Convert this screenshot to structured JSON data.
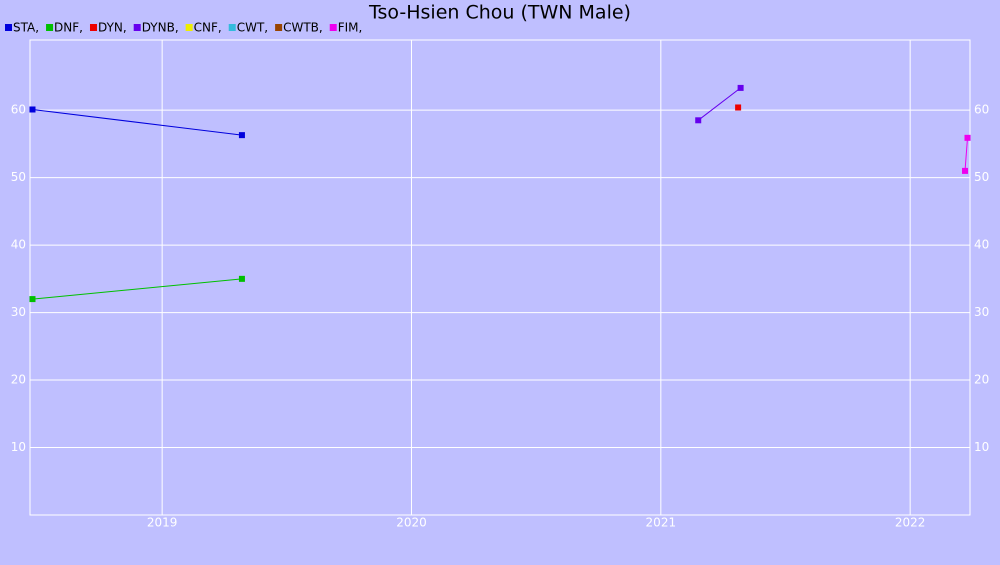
{
  "chart_data": {
    "type": "line",
    "title": "Tso-Hsien Chou (TWN Male)",
    "series": [
      {
        "name": "STA,",
        "color": "#0000dd",
        "x": [
          2018.48,
          2019.32
        ],
        "values": [
          60.1,
          56.3
        ]
      },
      {
        "name": "DNF,",
        "color": "#00c000",
        "x": [
          2018.48,
          2019.32
        ],
        "values": [
          32.0,
          35.0
        ]
      },
      {
        "name": "DYN,",
        "color": "#ee0000",
        "x": [
          2021.31
        ],
        "values": [
          60.4
        ]
      },
      {
        "name": "DYNB,",
        "color": "#6600ee",
        "x": [
          2021.15,
          2021.32
        ],
        "values": [
          58.5,
          63.3
        ]
      },
      {
        "name": "CNF,",
        "color": "#eeee00",
        "x": [],
        "values": []
      },
      {
        "name": "CWT,",
        "color": "#33bbdd",
        "x": [],
        "values": []
      },
      {
        "name": "CWTB,",
        "color": "#994400",
        "x": [],
        "values": []
      },
      {
        "name": "FIM,",
        "color": "#ee00ee",
        "x": [
          2022.23,
          2022.22
        ],
        "values": [
          55.9,
          51.0
        ]
      }
    ],
    "xlim": [
      2018.47,
      2022.24
    ],
    "xticks": [
      2019,
      2020,
      2021,
      2022
    ],
    "ylim": [
      0,
      70.4
    ],
    "yticks": [
      10,
      20,
      30,
      40,
      50,
      60
    ],
    "grid": true
  }
}
